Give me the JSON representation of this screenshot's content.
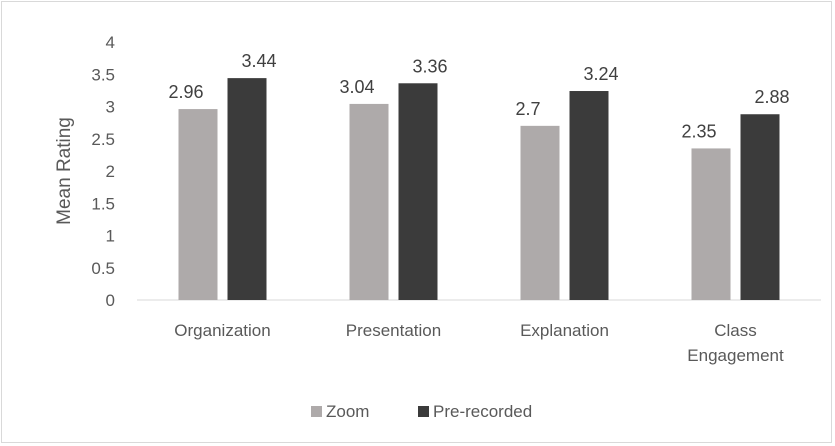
{
  "chart_data": {
    "type": "bar",
    "categories": [
      [
        "Organization"
      ],
      [
        "Presentation"
      ],
      [
        "Explanation"
      ],
      [
        "Class",
        "Engagement"
      ]
    ],
    "series": [
      {
        "name": "Zoom",
        "color": "#aeaaaa",
        "values": [
          2.96,
          3.04,
          2.7,
          2.35
        ],
        "labels": [
          "2.96",
          "3.04",
          "2.7",
          "2.35"
        ]
      },
      {
        "name": "Pre-recorded",
        "color": "#3b3b3b",
        "values": [
          3.44,
          3.36,
          3.24,
          2.88
        ],
        "labels": [
          "3.44",
          "3.36",
          "3.24",
          "2.88"
        ]
      }
    ],
    "ylabel": "Mean Rating",
    "xlabel": "",
    "ylim": [
      0,
      4
    ],
    "yticks": [
      "0",
      "0.5",
      "1",
      "1.5",
      "2",
      "2.5",
      "3",
      "3.5",
      "4"
    ],
    "grid": false,
    "legend_position": "bottom"
  }
}
